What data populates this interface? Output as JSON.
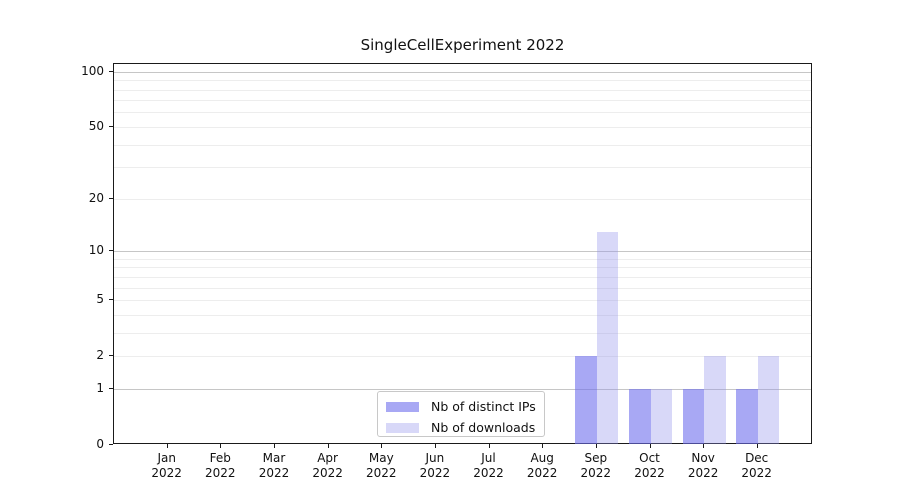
{
  "chart_data": {
    "type": "bar",
    "title": "SingleCellExperiment 2022",
    "categories": [
      "Jan",
      "Feb",
      "Mar",
      "Apr",
      "May",
      "Jun",
      "Jul",
      "Aug",
      "Sep",
      "Oct",
      "Nov",
      "Dec"
    ],
    "year_label": "2022",
    "series": [
      {
        "name": "Nb of distinct IPs",
        "color": "rgba(110,110,237,0.6)",
        "values": [
          0,
          0,
          0,
          0,
          0,
          0,
          0,
          0,
          2,
          1,
          1,
          1
        ]
      },
      {
        "name": "Nb of downloads",
        "color": "rgba(144,144,235,0.35)",
        "values": [
          0,
          0,
          0,
          0,
          0,
          0,
          0,
          0,
          13,
          1,
          2,
          2
        ]
      }
    ],
    "xlabel": "",
    "ylabel": "",
    "y_axis": {
      "scale": "log1p",
      "ylim": [
        0,
        110
      ],
      "tick_values": [
        0,
        1,
        2,
        5,
        10,
        20,
        50,
        100
      ],
      "major_gridlines": [
        1,
        10,
        100
      ],
      "minor_gridlines": [
        2,
        3,
        4,
        5,
        6,
        7,
        8,
        9,
        20,
        30,
        40,
        50,
        60,
        70,
        80,
        90
      ]
    },
    "grid": "on",
    "legend_position": "lower center",
    "colors": {
      "major_grid": "#c6c6c6",
      "minor_grid": "#ededed",
      "spine": "#1a1a1a",
      "text": "#111111",
      "background": "#ffffff"
    }
  }
}
